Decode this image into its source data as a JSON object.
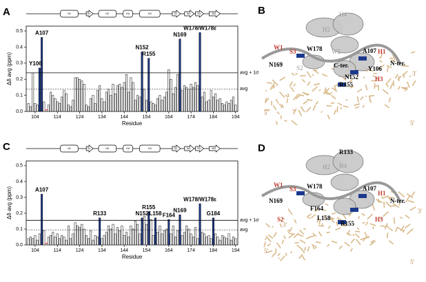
{
  "chart_data": [
    {
      "type": "bar",
      "panel": "A",
      "ylabel": "Δδ avg (ppm)",
      "xlabel": "Residue",
      "x": [
        101,
        102,
        103,
        104,
        105,
        106,
        107,
        108,
        109,
        110,
        111,
        112,
        113,
        114,
        115,
        116,
        117,
        118,
        119,
        120,
        121,
        122,
        123,
        124,
        125,
        126,
        127,
        128,
        129,
        130,
        131,
        132,
        133,
        134,
        135,
        136,
        137,
        138,
        139,
        140,
        141,
        142,
        143,
        144,
        145,
        146,
        147,
        148,
        149,
        150,
        151,
        152,
        153,
        154,
        155,
        156,
        157,
        158,
        159,
        160,
        161,
        162,
        163,
        164,
        165,
        166,
        167,
        168,
        169,
        170,
        171,
        172,
        173,
        174,
        175,
        176,
        177,
        178,
        179,
        180,
        181,
        182,
        183,
        184,
        185,
        186,
        187,
        188,
        189,
        190,
        191,
        192,
        193,
        194
      ],
      "values": [
        0.05,
        0.03,
        0.24,
        0.05,
        0.04,
        0.27,
        0.46,
        0.06,
        null,
        0.04,
        0.12,
        0.1,
        0.08,
        0.06,
        0.05,
        0.09,
        0.13,
        0.11,
        0.04,
        0.03,
        0.07,
        0.21,
        0.21,
        0.2,
        0.19,
        0.17,
        0.04,
        0.03,
        0.08,
        0.1,
        0.05,
        0.13,
        0.16,
        0.08,
        0.06,
        0.12,
        0.14,
        0.1,
        0.17,
        0.11,
        0.16,
        0.17,
        0.15,
        0.18,
        0.23,
        0.12,
        0.21,
        0.18,
        0.07,
        0.1,
        0.09,
        0.37,
        0.14,
        0.07,
        0.33,
        0.06,
        0.05,
        0.04,
        0.08,
        0.1,
        0.07,
        0.09,
        0.12,
        0.26,
        0.2,
        0.11,
        0.15,
        0.23,
        0.45,
        0.13,
        0.16,
        0.15,
        0.14,
        0.17,
        0.15,
        0.18,
        0.16,
        0.49,
        0.09,
        0.12,
        0.06,
        0.07,
        0.13,
        0.09,
        0.11,
        0.07,
        0.08,
        0.05,
        0.04,
        0.06,
        0.05,
        0.07,
        0.09,
        0.04
      ],
      "color": "#ffffff",
      "highlight_color": "#1c3a8c",
      "annotations": [
        {
          "text": "Y106",
          "x": 106
        },
        {
          "text": "A107",
          "x": 107
        },
        {
          "text": "N152",
          "x": 152
        },
        {
          "text": "R155",
          "x": 155
        },
        {
          "text": "N169",
          "x": 169
        },
        {
          "text": "W178/W178ε",
          "x": 178
        }
      ],
      "ref_lines": [
        {
          "value": 0.24,
          "label": "avg + 1σ"
        },
        {
          "value": 0.14,
          "label": "avg"
        }
      ],
      "xlim": [
        100,
        195
      ],
      "xticks": [
        104,
        114,
        124,
        134,
        144,
        154,
        164,
        174,
        184,
        194
      ],
      "ylim": [
        0,
        0.53
      ],
      "yticks": [
        {
          "value": 0,
          "label": "0.0"
        },
        0.1,
        0.2,
        0.3,
        0.4,
        0.5
      ],
      "structure_labels": [
        "H1",
        "S1",
        "H2",
        "H4",
        "H3",
        "S2",
        "W1",
        "S3",
        "W2"
      ]
    },
    {
      "type": "bar",
      "panel": "C",
      "ylabel": "Δδ avg (ppm)",
      "xlabel": "Residue",
      "x": [
        101,
        102,
        103,
        104,
        105,
        106,
        107,
        108,
        109,
        110,
        111,
        112,
        113,
        114,
        115,
        116,
        117,
        118,
        119,
        120,
        121,
        122,
        123,
        124,
        125,
        126,
        127,
        128,
        129,
        130,
        131,
        132,
        133,
        134,
        135,
        136,
        137,
        138,
        139,
        140,
        141,
        142,
        143,
        144,
        145,
        146,
        147,
        148,
        149,
        150,
        151,
        152,
        153,
        154,
        155,
        156,
        157,
        158,
        159,
        160,
        161,
        162,
        163,
        164,
        165,
        166,
        167,
        168,
        169,
        170,
        171,
        172,
        173,
        174,
        175,
        176,
        177,
        178,
        179,
        180,
        181,
        182,
        183,
        184,
        185,
        186,
        187,
        188,
        189,
        190,
        191,
        192,
        193,
        194
      ],
      "values": [
        0.04,
        0.05,
        0.04,
        0.06,
        0.03,
        0.07,
        0.32,
        0.09,
        null,
        0.05,
        0.06,
        0.08,
        0.05,
        0.07,
        0.04,
        0.06,
        0.05,
        0.03,
        0.12,
        0.04,
        0.07,
        0.14,
        0.12,
        0.11,
        0.13,
        0.1,
        0.06,
        0.04,
        0.09,
        0.03,
        0.06,
        0.05,
        0.17,
        0.04,
        0.06,
        0.08,
        0.12,
        0.1,
        0.13,
        0.07,
        0.11,
        0.09,
        0.12,
        0.06,
        0.08,
        0.05,
        0.12,
        0.1,
        0.15,
        0.13,
        0.07,
        0.17,
        0.18,
        0.13,
        0.21,
        0.16,
        0.06,
        0.17,
        0.08,
        0.12,
        0.07,
        0.09,
        0.1,
        0.16,
        0.07,
        0.12,
        0.05,
        0.09,
        0.19,
        0.06,
        0.08,
        0.12,
        0.1,
        0.07,
        0.05,
        0.11,
        0.04,
        0.26,
        0.08,
        0.07,
        0.05,
        0.06,
        0.04,
        0.17,
        0.07,
        0.05,
        0.03,
        0.06,
        0.05,
        0.04,
        0.07,
        0.03,
        0.05,
        0.04
      ],
      "color": "#ffffff",
      "highlight_color": "#1c3a8c",
      "annotations": [
        {
          "text": "A107",
          "x": 107
        },
        {
          "text": "R133",
          "x": 133
        },
        {
          "text": "N152",
          "x": 152
        },
        {
          "text": "R155",
          "x": 155
        },
        {
          "text": "L158",
          "x": 158
        },
        {
          "text": "F164",
          "x": 164
        },
        {
          "text": "N169",
          "x": 169
        },
        {
          "text": "W178/W178ε",
          "x": 178
        },
        {
          "text": "G184",
          "x": 184
        }
      ],
      "ref_lines": [
        {
          "value": 0.155,
          "label": "avg + 1σ"
        },
        {
          "value": 0.095,
          "label": "avg"
        }
      ],
      "xlim": [
        100,
        195
      ],
      "xticks": [
        104,
        114,
        124,
        134,
        144,
        154,
        164,
        174,
        184,
        194
      ],
      "ylim": [
        0,
        0.53
      ],
      "yticks": [
        {
          "value": 0,
          "label": "0.0"
        },
        0.1,
        0.2,
        0.3,
        0.4,
        0.5
      ],
      "structure_labels": [
        "H1",
        "S1",
        "H2",
        "H4",
        "H3",
        "S2",
        "W1",
        "S3",
        "W2"
      ]
    }
  ],
  "structures": [
    {
      "panel": "B",
      "labels": [
        "H4",
        "H2",
        "W2",
        "W178",
        "S3",
        "W1",
        "H1",
        "A107",
        "N-ter.",
        "C-ter.",
        "N169",
        "Y106",
        "N152",
        "R155",
        "H3",
        "S2",
        "5'",
        "3'",
        "5'"
      ]
    },
    {
      "panel": "D",
      "labels": [
        "R133",
        "H2",
        "H4",
        "W178",
        "S3",
        "W1",
        "H1",
        "A107",
        "N-ter.",
        "N169",
        "S2",
        "F164",
        "L158",
        "R155",
        "H3",
        "5'",
        "3'",
        "3'",
        "5'"
      ]
    }
  ]
}
